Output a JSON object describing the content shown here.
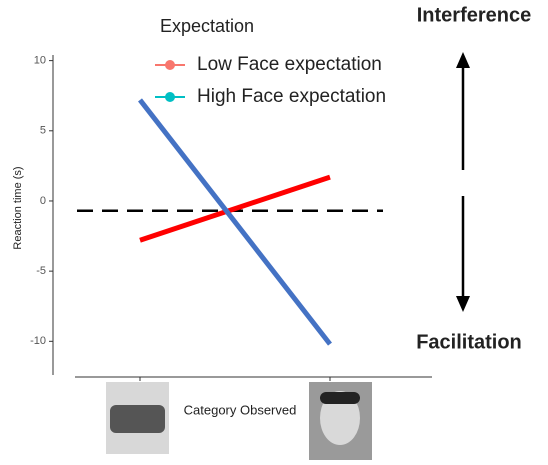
{
  "chart_data": {
    "type": "line",
    "y_label": "Reaction time (s)",
    "x_label": "Category Observed",
    "legend_title": "Expectation",
    "categories": [
      null,
      null
    ],
    "series": [
      {
        "name": "Low Face expectation",
        "color": "#ff0000",
        "legend_color": "#f8766d",
        "values": [
          -2.8,
          1.7
        ]
      },
      {
        "name": "High Face expectation",
        "color": "#4472c4",
        "legend_color": "#00bfc4",
        "values": [
          7.2,
          -10.2
        ]
      }
    ],
    "reference_line": -0.7,
    "ylim": [
      -12.4,
      10.4
    ],
    "yticks": [
      10,
      5,
      0,
      -5,
      -10
    ],
    "annotations": [
      "Interference",
      "Facilitation"
    ]
  }
}
